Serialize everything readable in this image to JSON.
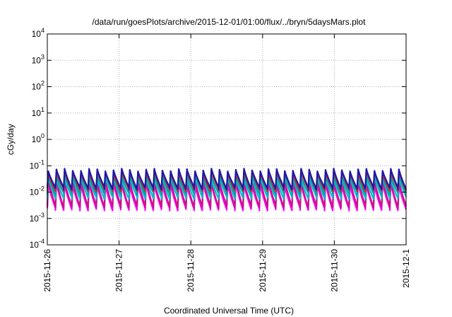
{
  "chart_data": {
    "type": "line",
    "title": "/data/run/goesPlots/archive/2015-12-01/01:00/flux/../bryn/5daysMars.plot",
    "xlabel": "Coordinated Universal Time (UTC)",
    "ylabel": "cGy/day",
    "y_scale": "log",
    "ylim": [
      0.0001,
      10000
    ],
    "y_ticks": [
      {
        "value": 0.0001,
        "base": "10",
        "exp": "-4"
      },
      {
        "value": 0.001,
        "base": "10",
        "exp": "-3"
      },
      {
        "value": 0.01,
        "base": "10",
        "exp": "-2"
      },
      {
        "value": 0.1,
        "base": "10",
        "exp": "-1"
      },
      {
        "value": 1,
        "base": "10",
        "exp": "0"
      },
      {
        "value": 10,
        "base": "10",
        "exp": "1"
      },
      {
        "value": 100,
        "base": "10",
        "exp": "2"
      },
      {
        "value": 1000,
        "base": "10",
        "exp": "3"
      },
      {
        "value": 10000,
        "base": "10",
        "exp": "4"
      }
    ],
    "xlim": [
      "2015-11-26T00:00",
      "2015-12-01T00:00"
    ],
    "x_ticks": [
      "2015-11-26",
      "2015-11-27",
      "2015-11-28",
      "2015-11-29",
      "2015-11-30",
      "2015-12-1"
    ],
    "grid": true,
    "legend": "none",
    "series": [
      {
        "color": "#ff00ff",
        "pattern": "sawtooth",
        "cycles": 44,
        "low": 0.0022,
        "high": 0.02
      },
      {
        "color": "#c71585",
        "pattern": "sawtooth",
        "cycles": 44,
        "low": 0.0028,
        "high": 0.028
      },
      {
        "color": "#00bcd4",
        "pattern": "sawtooth",
        "cycles": 44,
        "low": 0.006,
        "high": 0.035
      },
      {
        "color": "#00a0a0",
        "pattern": "sawtooth",
        "cycles": 44,
        "low": 0.009,
        "high": 0.045
      },
      {
        "color": "#d62020",
        "pattern": "sawtooth",
        "cycles": 44,
        "low": 0.012,
        "high": 0.06
      },
      {
        "color": "#1a1aa8",
        "pattern": "sawtooth",
        "cycles": 44,
        "low": 0.014,
        "high": 0.07
      }
    ]
  }
}
